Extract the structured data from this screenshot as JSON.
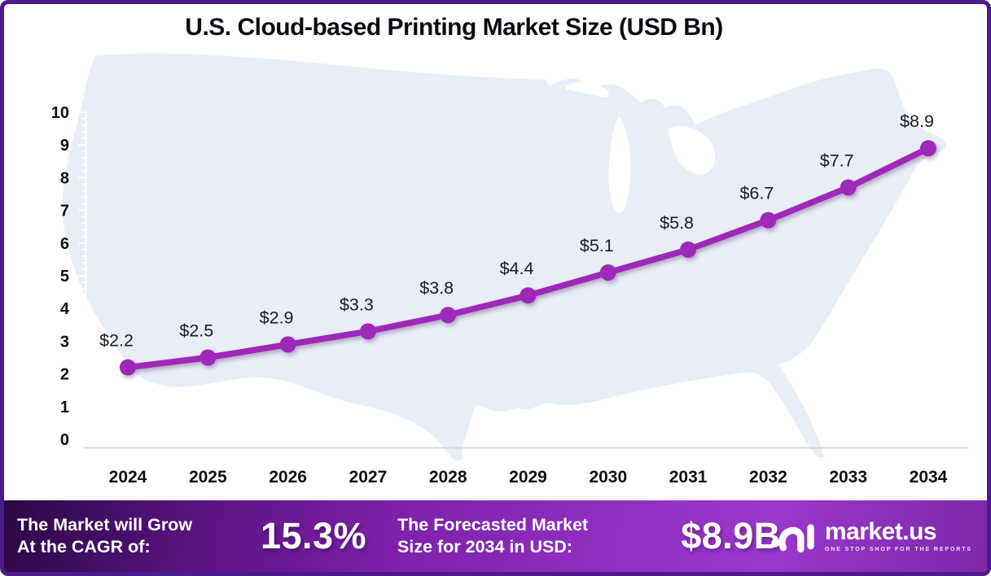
{
  "title": "U.S. Cloud-based Printing Market Size (USD Bn)",
  "chart_data": {
    "type": "line",
    "title": "U.S. Cloud-based Printing Market Size (USD Bn)",
    "categories": [
      "2024",
      "2025",
      "2026",
      "2027",
      "2028",
      "2029",
      "2030",
      "2031",
      "2032",
      "2033",
      "2034"
    ],
    "series": [
      {
        "name": "U.S. Cloud-based Printing Market Size (USD Bn)",
        "values": [
          2.2,
          2.5,
          2.9,
          3.3,
          3.8,
          4.4,
          5.1,
          5.8,
          6.7,
          7.7,
          8.9
        ]
      }
    ],
    "point_labels": [
      "$2.2",
      "$2.5",
      "$2.9",
      "$3.3",
      "$3.8",
      "$4.4",
      "$5.1",
      "$5.8",
      "$6.7",
      "$7.7",
      "$8.9"
    ],
    "ylim": [
      0,
      10
    ],
    "yticks": [
      0,
      1,
      2,
      3,
      4,
      5,
      6,
      7,
      8,
      9,
      10
    ],
    "grid": false,
    "legend": "none",
    "background": "us-map-silhouette",
    "line_color": "#9e28b8",
    "marker_color": "#9e28b8",
    "map_fill": "#e9edf8",
    "axis_line_color": "#d8d8dc",
    "tick_ruler_color": "#ffffff",
    "label_color": "#1c1c24",
    "axis_label_color": "#111116"
  },
  "banner": {
    "cagr_label_line1": "The Market will Grow",
    "cagr_label_line2": "At the CAGR of:",
    "cagr_value": "15.3%",
    "forecast_label_line1": "The Forecasted Market",
    "forecast_label_line2": "Size for 2034 in USD:",
    "forecast_value": "$8.9B",
    "logo": {
      "name": "market.us",
      "tagline": "ONE STOP SHOP FOR THE REPORTS"
    }
  },
  "frame": {
    "border_color": "#4b1a8c"
  }
}
